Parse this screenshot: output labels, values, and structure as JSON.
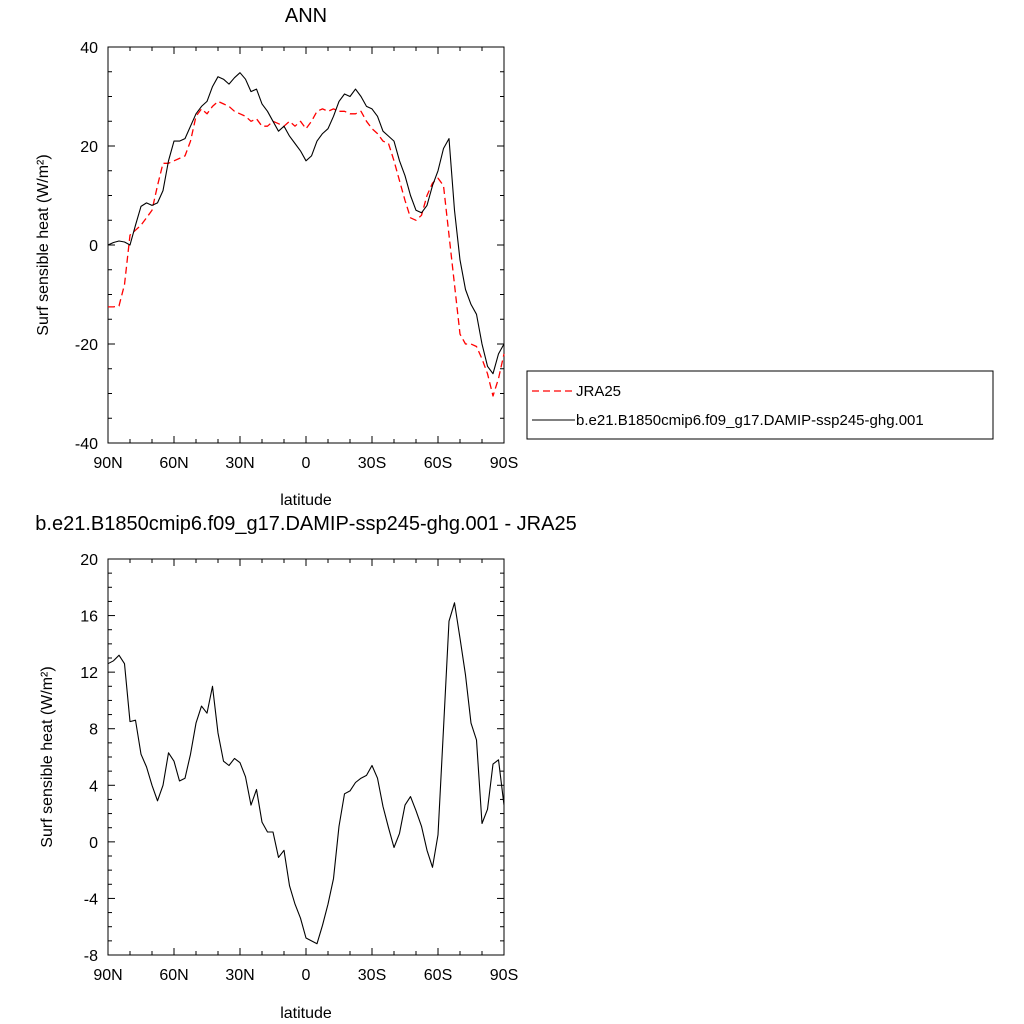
{
  "chart_data": [
    {
      "type": "line",
      "title": "ANN",
      "xlabel": "latitude",
      "ylabel": "Surf sensible heat (W/m²)",
      "xlim": [
        90,
        -90
      ],
      "ylim": [
        -40,
        40
      ],
      "grid": false,
      "legend": "right",
      "xticks": [
        90,
        60,
        30,
        0,
        -30,
        -60,
        -90
      ],
      "xtick_labels": [
        "90N",
        "60N",
        "30N",
        "0",
        "30S",
        "60S",
        "90S"
      ],
      "yticks": [
        40,
        20,
        0,
        -20,
        -40
      ],
      "ytick_labels": [
        "40",
        "20",
        "0",
        "-20",
        "-40"
      ],
      "series": [
        {
          "name": "JRA25",
          "style": "dashed",
          "color": "#ff0000",
          "x": [
            90,
            87.5,
            85,
            82.5,
            80,
            77.5,
            75,
            72.5,
            70,
            67.5,
            65,
            62.5,
            60,
            57.5,
            55,
            52.5,
            50,
            47.5,
            45,
            42.5,
            40,
            37.5,
            35,
            32.5,
            30,
            27.5,
            25,
            22.5,
            20,
            17.5,
            15,
            12.5,
            10,
            7.5,
            5,
            2.5,
            0,
            -2.5,
            -5,
            -7.5,
            -10,
            -12.5,
            -15,
            -17.5,
            -20,
            -22.5,
            -25,
            -27.5,
            -30,
            -32.5,
            -35,
            -37.5,
            -40,
            -42.5,
            -45,
            -47.5,
            -50,
            -52.5,
            -55,
            -57.5,
            -60,
            -62.5,
            -65,
            -67.5,
            -70,
            -72.5,
            -75,
            -77.5,
            -80,
            -82.5,
            -85,
            -87.5,
            -90
          ],
          "y": [
            -12.5,
            -12.5,
            -12.3,
            -8,
            2,
            3,
            4,
            5.5,
            7,
            12,
            16.5,
            16.5,
            17,
            17.5,
            18,
            21,
            26,
            27.5,
            26.5,
            28,
            29,
            28.5,
            28,
            27,
            26.5,
            26,
            25,
            25.5,
            24,
            24,
            25,
            24.5,
            24,
            25,
            24,
            25,
            23.5,
            25,
            27,
            27.5,
            27,
            27.5,
            27,
            27,
            26.5,
            26.5,
            27,
            25,
            23.5,
            22.5,
            21,
            20.5,
            17,
            13,
            9,
            5.5,
            5,
            6,
            10,
            12.5,
            13.5,
            12,
            2,
            -8,
            -18,
            -20,
            -20,
            -20.5,
            -23,
            -26,
            -30.5,
            -27,
            -22
          ]
        },
        {
          "name": "b.e21.B1850cmip6.f09_g17.DAMIP-ssp245-ghg.001",
          "style": "solid",
          "color": "#000000",
          "x": [
            90,
            87.5,
            85,
            82.5,
            80,
            77.5,
            75,
            72.5,
            70,
            67.5,
            65,
            62.5,
            60,
            57.5,
            55,
            52.5,
            50,
            47.5,
            45,
            42.5,
            40,
            37.5,
            35,
            32.5,
            30,
            27.5,
            25,
            22.5,
            20,
            17.5,
            15,
            12.5,
            10,
            7.5,
            5,
            2.5,
            0,
            -2.5,
            -5,
            -7.5,
            -10,
            -12.5,
            -15,
            -17.5,
            -20,
            -22.5,
            -25,
            -27.5,
            -30,
            -32.5,
            -35,
            -37.5,
            -40,
            -42.5,
            -45,
            -47.5,
            -50,
            -52.5,
            -55,
            -57.5,
            -60,
            -62.5,
            -65,
            -67.5,
            -70,
            -72.5,
            -75,
            -77.5,
            -80,
            -82.5,
            -85,
            -87.5,
            -90
          ],
          "y": [
            0,
            0.5,
            0.8,
            0.6,
            0,
            4,
            7.8,
            8.5,
            8,
            8.5,
            11,
            17,
            21,
            21,
            21.5,
            24,
            26.5,
            28,
            29,
            32,
            34,
            33.5,
            32.5,
            33.8,
            34.8,
            33.5,
            31,
            31.5,
            28.5,
            27,
            25,
            23,
            24,
            22,
            20.5,
            19,
            17,
            18,
            21,
            22.5,
            23.5,
            26,
            29,
            30.5,
            30,
            31.5,
            30,
            28,
            27.5,
            26,
            23,
            22,
            21,
            17,
            14,
            10,
            7,
            6.5,
            8,
            12,
            15,
            19.5,
            21.5,
            7,
            -3,
            -9,
            -12,
            -14,
            -20,
            -24.5,
            -26,
            -22,
            -20
          ]
        }
      ]
    },
    {
      "type": "line",
      "title": "b.e21.B1850cmip6.f09_g17.DAMIP-ssp245-ghg.001 - JRA25",
      "xlabel": "latitude",
      "ylabel": "Surf sensible heat (W/m²)",
      "xlim": [
        90,
        -90
      ],
      "ylim": [
        -8,
        20
      ],
      "grid": false,
      "xticks": [
        90,
        60,
        30,
        0,
        -30,
        -60,
        -90
      ],
      "xtick_labels": [
        "90N",
        "60N",
        "30N",
        "0",
        "30S",
        "60S",
        "90S"
      ],
      "yticks": [
        20,
        16,
        12,
        8,
        4,
        0,
        -4,
        -8
      ],
      "ytick_labels": [
        "20",
        "16",
        "12",
        "8",
        "4",
        "0",
        "-4",
        "-8"
      ],
      "series": [
        {
          "style": "solid",
          "color": "#000000",
          "x": [
            90,
            87.5,
            85,
            82.5,
            80,
            77.5,
            75,
            72.5,
            70,
            67.5,
            65,
            62.5,
            60,
            57.5,
            55,
            52.5,
            50,
            47.5,
            45,
            42.5,
            40,
            37.5,
            35,
            32.5,
            30,
            27.5,
            25,
            22.5,
            20,
            17.5,
            15,
            12.5,
            10,
            7.5,
            5,
            2.5,
            0,
            -2.5,
            -5,
            -7.5,
            -10,
            -12.5,
            -15,
            -17.5,
            -20,
            -22.5,
            -25,
            -27.5,
            -30,
            -32.5,
            -35,
            -37.5,
            -40,
            -42.5,
            -45,
            -47.5,
            -50,
            -52.5,
            -55,
            -57.5,
            -60,
            -62.5,
            -65,
            -67.5,
            -70,
            -72.5,
            -75,
            -77.5,
            -80,
            -82.5,
            -85,
            -87.5,
            -90
          ],
          "y": [
            12.6,
            12.8,
            13.2,
            12.6,
            8.5,
            8.6,
            6.2,
            5.3,
            4,
            2.9,
            4,
            6.3,
            5.7,
            4.3,
            4.5,
            6.2,
            8.4,
            9.6,
            9.1,
            11,
            7.7,
            5.7,
            5.4,
            5.9,
            5.6,
            4.6,
            2.6,
            3.7,
            1.4,
            0.7,
            0.7,
            -1.1,
            -0.6,
            -3.1,
            -4.4,
            -5.4,
            -6.8,
            -7,
            -7.2,
            -5.9,
            -4.4,
            -2.6,
            1.1,
            3.4,
            3.6,
            4.2,
            4.5,
            4.7,
            5.4,
            4.5,
            2.5,
            1,
            -0.4,
            0.6,
            2.6,
            3.2,
            2.2,
            1.1,
            -0.6,
            -1.8,
            0.5,
            8,
            15.6,
            16.9,
            14.4,
            11.8,
            8.4,
            7.2,
            1.3,
            2.3,
            5.5,
            5.8,
            2.6
          ]
        }
      ]
    }
  ]
}
